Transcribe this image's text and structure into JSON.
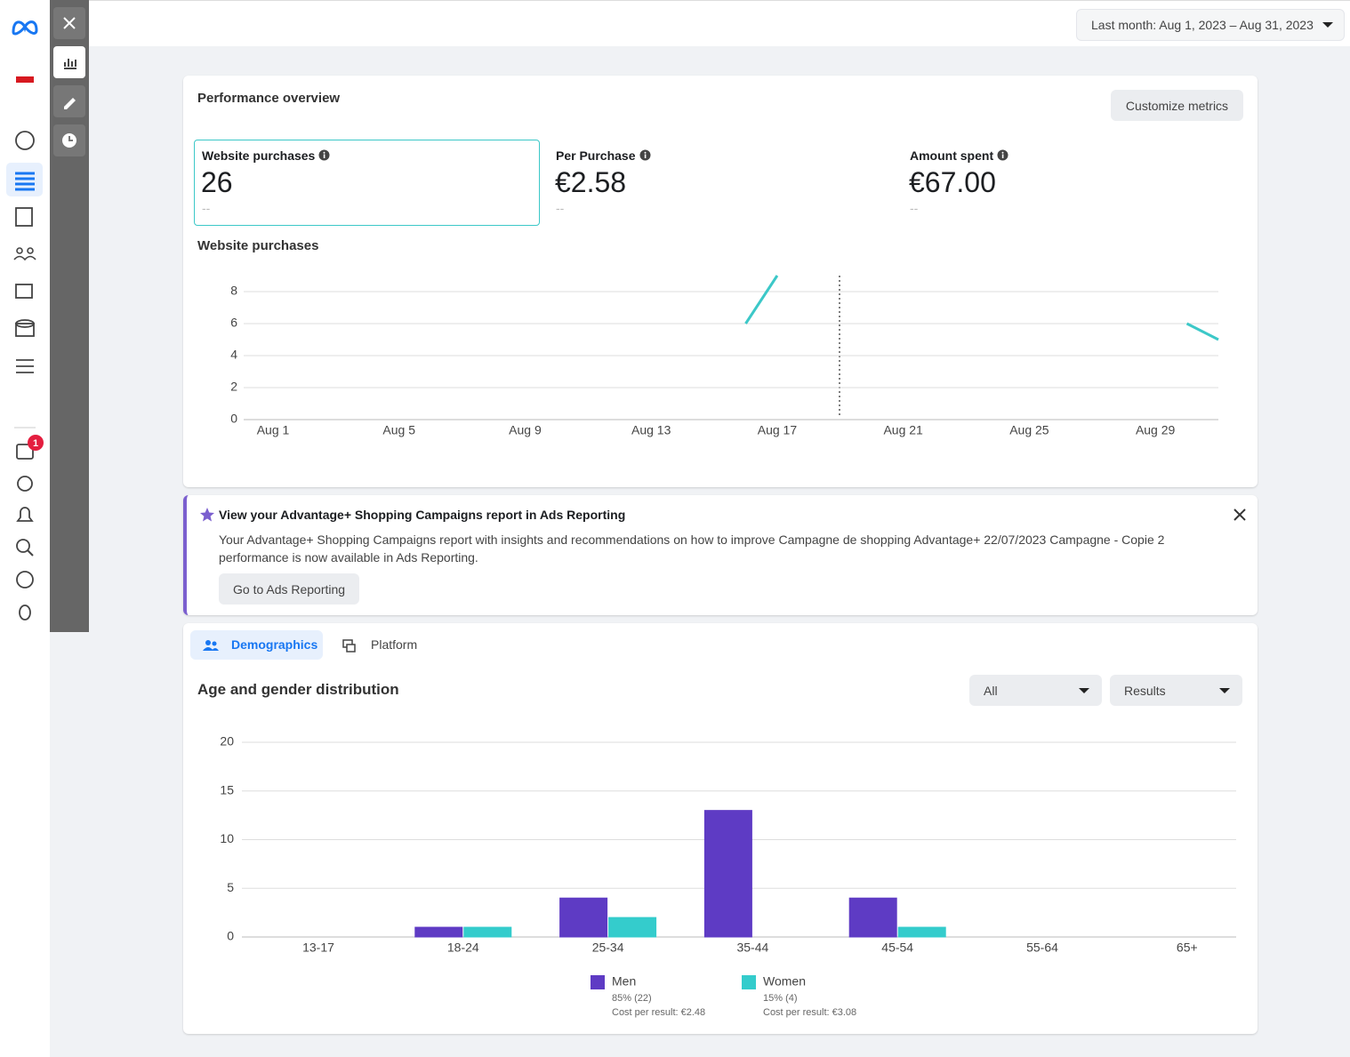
{
  "nav": {
    "badge": "1"
  },
  "top_bar": {
    "date_range": "Last month: Aug 1, 2023 – Aug 31, 2023"
  },
  "performance": {
    "title": "Performance overview",
    "button": "Customize metrics",
    "metrics": [
      {
        "label": "Website purchases",
        "value": "26",
        "change": "--"
      },
      {
        "label": "Per Purchase",
        "value": "€2.58",
        "change": "--"
      },
      {
        "label": "Amount spent",
        "value": "€67.00",
        "change": "--"
      }
    ]
  },
  "banner": {
    "title": "View your Advantage+ Shopping Campaigns report in Ads Reporting",
    "text": "Your Advantage+ Shopping Campaigns report with insights and recommendations on how to improve Campagne de shopping Advantage+ 22/07/2023 Campagne - Copie 2 performance is now available in Ads Reporting.",
    "button": "Go to Ads Reporting"
  },
  "demographics": {
    "tabs": [
      "Demographics",
      "Platform"
    ],
    "filters": [
      "All",
      "Results"
    ]
  },
  "chart_data": [
    {
      "type": "line",
      "title": "Website purchases",
      "categories": [
        "Aug 1",
        null,
        null,
        null,
        "Aug 5",
        null,
        null,
        null,
        "Aug 9",
        null,
        null,
        null,
        "Aug 13",
        null,
        null,
        null,
        "Aug 17",
        null,
        null,
        null,
        "Aug 21",
        null,
        null,
        null,
        "Aug 25",
        null,
        null,
        null,
        "Aug 29",
        null,
        null
      ],
      "values": [
        null,
        null,
        null,
        null,
        null,
        null,
        null,
        null,
        null,
        null,
        null,
        null,
        null,
        null,
        null,
        6,
        9,
        null,
        null,
        null,
        null,
        null,
        null,
        null,
        null,
        null,
        null,
        null,
        null,
        6,
        5
      ],
      "color": "#3cc8c8",
      "ylim": [
        0,
        9
      ],
      "yticks": [
        0,
        2,
        4,
        6,
        8
      ],
      "grid": true
    },
    {
      "type": "bar",
      "title": "Age and gender distribution",
      "categories": [
        "13-17",
        "18-24",
        "25-34",
        "35-44",
        "45-54",
        "55-64",
        "65+"
      ],
      "series": [
        {
          "name": "Men",
          "color": "#5e3bc4",
          "values": [
            0,
            1,
            4,
            13,
            4,
            0,
            0
          ],
          "share": "85% (22)",
          "cost": "Cost per result: €2.48"
        },
        {
          "name": "Women",
          "color": "#34cccc",
          "values": [
            0,
            1,
            2,
            0,
            1,
            0,
            0
          ],
          "share": "15% (4)",
          "cost": "Cost per result: €3.08"
        }
      ],
      "ylim": [
        0,
        20
      ],
      "yticks": [
        0,
        5,
        10,
        15,
        20
      ],
      "grid": true
    }
  ]
}
